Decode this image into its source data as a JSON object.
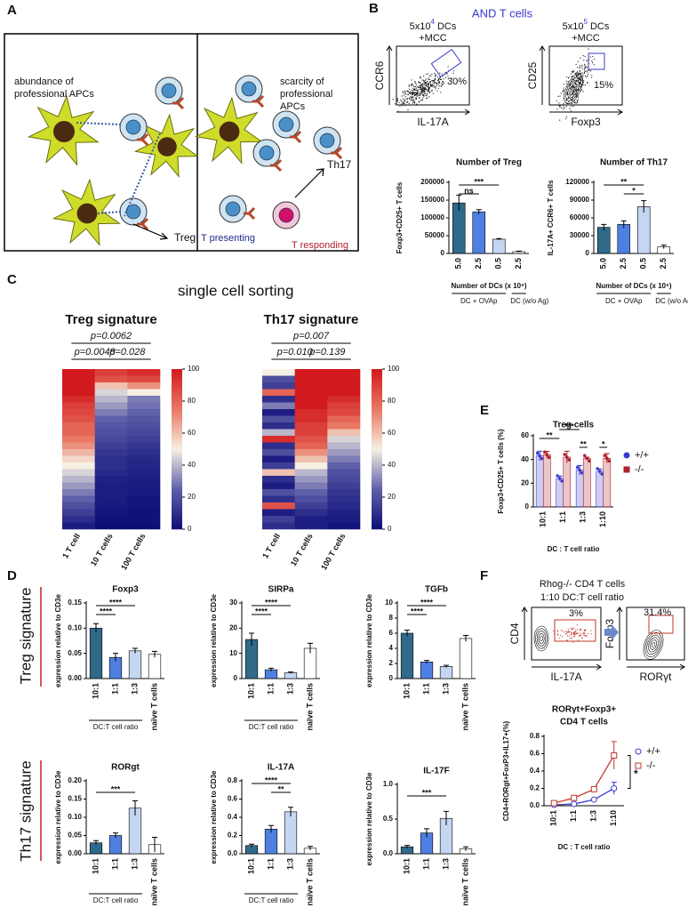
{
  "panel_labels": [
    "A",
    "B",
    "C",
    "D",
    "E",
    "F"
  ],
  "schematic": {
    "left_text": [
      "abundance of",
      "professional APCs"
    ],
    "left_outcome": "Treg",
    "right_text": [
      "scarcity of",
      "professional",
      "APCs"
    ],
    "right_outcome": "Th17",
    "presenting": "T presenting",
    "responding": "T responding"
  },
  "flow_B": {
    "title": "AND T cells",
    "plots": [
      {
        "dc_number": "5x10",
        "dc_exponent": "4",
        "dc_unit": " DCs",
        "stim": "+MCC",
        "y_label": "CCR6",
        "x_label": "IL-17A",
        "gate": "30%"
      },
      {
        "dc_number": "5x10",
        "dc_exponent": "5",
        "dc_unit": " DCs",
        "stim": "+MCC",
        "y_label": "CD25",
        "x_label": "Foxp3",
        "gate": "15%"
      }
    ]
  },
  "panel_C_title": "single cell sorting",
  "flow_F": {
    "title": [
      "Rhog-/- CD4 T cells",
      "1:10 DC:T cell ratio"
    ],
    "plots": [
      {
        "y_label": "CD4",
        "x_label": "IL-17A",
        "gate": "3%"
      },
      {
        "y_label": "Foxp3",
        "x_label": "RORγt",
        "gate": "31.4%"
      }
    ]
  },
  "side_labels": [
    "Treg signature",
    "Th17 signature"
  ],
  "chart_data": [
    {
      "type": "bar",
      "title": "Number of Treg",
      "y_label": "Foxp3+CD25+ T cells",
      "x_label": "Number of DCs (x 10⁵)",
      "categories": [
        "5.0",
        "2.5",
        "0.5",
        "2.5"
      ],
      "values": [
        142000,
        117000,
        40000,
        5000
      ],
      "errors": [
        22000,
        6000,
        2000,
        1500
      ],
      "colors": [
        "#2f6a8a",
        "#4f7fe0",
        "#c5d6f2",
        "#ffffff"
      ],
      "ylim": [
        0,
        200000
      ],
      "yticks": [
        0,
        50000,
        100000,
        150000,
        200000
      ],
      "groups": [
        "DC + OVAp",
        "DC (w/o Ag)"
      ],
      "significance": [
        "ns",
        "***"
      ]
    },
    {
      "type": "bar",
      "title": "Number of Th17",
      "y_label": "IL-17A+ CCR6+ T cells",
      "x_label": "Number of DCs (x 10⁵)",
      "categories": [
        "5.0",
        "2.5",
        "0.5",
        "2.5"
      ],
      "values": [
        44000,
        49000,
        79000,
        11000
      ],
      "errors": [
        5000,
        6000,
        10000,
        3000
      ],
      "colors": [
        "#2f6a8a",
        "#4f7fe0",
        "#c5d6f2",
        "#ffffff"
      ],
      "ylim": [
        0,
        120000
      ],
      "yticks": [
        0,
        30000,
        60000,
        90000,
        120000
      ],
      "groups": [
        "DC + OVAp",
        "DC (w/o Ag)"
      ],
      "significance": [
        "**",
        "*"
      ]
    },
    {
      "type": "heatmap",
      "title": "Treg signature",
      "columns": [
        "1 T cell",
        "10 T cells",
        "100 T cells"
      ],
      "pvalues": [
        "p=0.0062",
        "p=0.0048",
        "p=0.028"
      ],
      "clim": [
        0,
        100
      ],
      "cticks": [
        0,
        20,
        40,
        60,
        80,
        100
      ],
      "values": [
        [
          100,
          90,
          95
        ],
        [
          100,
          85,
          88
        ],
        [
          100,
          60,
          70
        ],
        [
          100,
          45,
          50
        ],
        [
          95,
          40,
          30
        ],
        [
          90,
          35,
          28
        ],
        [
          88,
          30,
          25
        ],
        [
          85,
          25,
          22
        ],
        [
          80,
          22,
          20
        ],
        [
          80,
          20,
          18
        ],
        [
          75,
          18,
          15
        ],
        [
          70,
          15,
          12
        ],
        [
          62,
          12,
          10
        ],
        [
          55,
          10,
          8
        ],
        [
          50,
          10,
          7
        ],
        [
          45,
          8,
          6
        ],
        [
          40,
          6,
          5
        ],
        [
          35,
          5,
          4
        ],
        [
          30,
          5,
          3
        ],
        [
          25,
          4,
          2
        ],
        [
          20,
          3,
          2
        ],
        [
          15,
          2,
          1
        ],
        [
          10,
          1,
          1
        ],
        [
          5,
          0,
          0
        ]
      ]
    },
    {
      "type": "heatmap",
      "title": "Th17 signature",
      "columns": [
        "1 T cell",
        "10 T cells",
        "100 T cells"
      ],
      "pvalues": [
        "p=0.007",
        "p=0.010",
        "p=0.139"
      ],
      "clim": [
        0,
        100
      ],
      "cticks": [
        0,
        20,
        40,
        60,
        80,
        100
      ],
      "values": [
        [
          50,
          100,
          100
        ],
        [
          20,
          100,
          100
        ],
        [
          15,
          100,
          100
        ],
        [
          80,
          100,
          100
        ],
        [
          10,
          100,
          95
        ],
        [
          30,
          100,
          90
        ],
        [
          5,
          95,
          88
        ],
        [
          20,
          95,
          80
        ],
        [
          10,
          90,
          75
        ],
        [
          40,
          90,
          60
        ],
        [
          95,
          85,
          45
        ],
        [
          10,
          80,
          40
        ],
        [
          20,
          70,
          35
        ],
        [
          5,
          60,
          30
        ],
        [
          15,
          50,
          25
        ],
        [
          60,
          40,
          20
        ],
        [
          10,
          35,
          18
        ],
        [
          5,
          30,
          15
        ],
        [
          20,
          25,
          12
        ],
        [
          10,
          20,
          10
        ],
        [
          85,
          15,
          8
        ],
        [
          5,
          10,
          6
        ],
        [
          15,
          5,
          4
        ],
        [
          10,
          5,
          2
        ]
      ]
    },
    {
      "type": "bar",
      "title": "Treg cells",
      "y_label": "Foxp3+CD25+ T cells (%)",
      "x_label": "DC : T cell ratio",
      "categories": [
        "10:1",
        "1:1",
        "1:3",
        "1:10"
      ],
      "ylim": [
        0,
        60
      ],
      "yticks": [
        0,
        20,
        40,
        60
      ],
      "series": [
        {
          "name": "+/+",
          "color": "#3a3ad0",
          "values": [
            43,
            24,
            31,
            30
          ],
          "errors": [
            4,
            2,
            4,
            2
          ]
        },
        {
          "name": "-/-",
          "color": "#b0202a",
          "values": [
            44,
            42,
            41,
            41
          ],
          "errors": [
            3,
            5,
            1,
            4
          ]
        }
      ],
      "significance": [
        "**",
        "***",
        "**",
        "*"
      ]
    },
    {
      "type": "bar",
      "title": "Foxp3",
      "y_label": "expression relative to CD3e",
      "x_label": "DC:T cell ratio",
      "categories": [
        "10:1",
        "1:1",
        "1:3",
        "naïve T cells"
      ],
      "values": [
        0.1,
        0.042,
        0.055,
        0.048
      ],
      "errors": [
        0.009,
        0.008,
        0.005,
        0.006
      ],
      "colors": [
        "#2f6a8a",
        "#4f7fe0",
        "#c5d6f2",
        "#ffffff"
      ],
      "ylim": [
        0,
        0.15
      ],
      "yticks": [
        {
          "value": 0,
          "label": "0.00"
        },
        0.05,
        {
          "value": 0.1,
          "label": "0.10"
        },
        0.15
      ],
      "significance": [
        "****",
        "****"
      ]
    },
    {
      "type": "bar",
      "title": "SIRPa",
      "y_label": "expression relative to CD3e",
      "x_label": "DC:T cell ratio",
      "categories": [
        "10:1",
        "1:1",
        "1:3",
        "naïve T cells"
      ],
      "values": [
        15.5,
        3.5,
        2.3,
        12
      ],
      "errors": [
        2.5,
        0.6,
        0.3,
        2
      ],
      "colors": [
        "#2f6a8a",
        "#4f7fe0",
        "#c5d6f2",
        "#ffffff"
      ],
      "ylim": [
        0,
        30
      ],
      "yticks": [
        0,
        10,
        20,
        30
      ],
      "significance": [
        "****",
        "****"
      ]
    },
    {
      "type": "bar",
      "title": "TGFb",
      "y_label": "expression relative to CD3e",
      "categories": [
        "10:1",
        "1:1",
        "1:3",
        "naïve T cells"
      ],
      "values": [
        6.0,
        2.2,
        1.6,
        5.3
      ],
      "errors": [
        0.4,
        0.2,
        0.15,
        0.4
      ],
      "colors": [
        "#2f6a8a",
        "#4f7fe0",
        "#c5d6f2",
        "#ffffff"
      ],
      "ylim": [
        0,
        10
      ],
      "yticks": [
        0,
        2,
        4,
        6,
        8,
        10
      ],
      "significance": [
        "****",
        "****"
      ]
    },
    {
      "type": "bar",
      "title": "RORgt",
      "y_label": "expression relative to CD3e",
      "x_label": "DC:T cell ratio",
      "categories": [
        "10:1",
        "1:1",
        "1:3",
        "naïve T cells"
      ],
      "values": [
        0.03,
        0.05,
        0.125,
        0.025
      ],
      "errors": [
        0.006,
        0.007,
        0.02,
        0.02
      ],
      "colors": [
        "#2f6a8a",
        "#4f7fe0",
        "#c5d6f2",
        "#ffffff"
      ],
      "ylim": [
        0,
        0.2
      ],
      "yticks": [
        {
          "value": 0,
          "label": "0.00"
        },
        0.05,
        {
          "value": 0.1,
          "label": "0.10"
        },
        0.15,
        {
          "value": 0.2,
          "label": "0.20"
        }
      ],
      "significance": [
        "***"
      ]
    },
    {
      "type": "bar",
      "title": "IL-17A",
      "y_label": "expression relative to CD3e",
      "x_label": "DC:T cell ratio",
      "categories": [
        "10:1",
        "1:1",
        "1:3",
        "naïve T cells"
      ],
      "values": [
        0.09,
        0.27,
        0.46,
        0.06
      ],
      "errors": [
        0.015,
        0.04,
        0.05,
        0.02
      ],
      "colors": [
        "#2f6a8a",
        "#4f7fe0",
        "#c5d6f2",
        "#ffffff"
      ],
      "ylim": [
        0,
        0.8
      ],
      "yticks": [
        {
          "value": 0,
          "label": "0.0"
        },
        0.2,
        0.4,
        0.6,
        0.8
      ],
      "significance": [
        "****",
        "**"
      ]
    },
    {
      "type": "bar",
      "title": "IL-17F",
      "y_label": "expression relative to CD3e",
      "categories": [
        "10:1",
        "1:1",
        "1:3",
        "naïve T cells"
      ],
      "values": [
        0.1,
        0.3,
        0.51,
        0.07
      ],
      "errors": [
        0.02,
        0.06,
        0.1,
        0.03
      ],
      "colors": [
        "#2f6a8a",
        "#4f7fe0",
        "#c5d6f2",
        "#ffffff"
      ],
      "ylim": [
        0,
        1.0
      ],
      "yticks": [
        {
          "value": 0,
          "label": "0.0"
        },
        0.5,
        {
          "value": 1,
          "label": "1.0"
        }
      ],
      "significance": [
        "***"
      ]
    },
    {
      "type": "line",
      "title": [
        "RORγt+Foxp3+",
        "CD4 T cells"
      ],
      "y_label": "CD4+RORgt+FoxP3+IL17+(%)",
      "x_label": "DC : T cell ratio",
      "categories": [
        "10:1",
        "1:1",
        "1:3",
        "1:10"
      ],
      "ylim": [
        0,
        0.8
      ],
      "yticks": [
        {
          "value": 0,
          "label": "0.0"
        },
        0.2,
        0.4,
        0.6,
        0.8
      ],
      "series": [
        {
          "name": "+/+",
          "color": "#3a3ad0",
          "values": [
            0.01,
            0.02,
            0.07,
            0.2
          ],
          "errors": [
            0.003,
            0.005,
            0.01,
            0.07
          ]
        },
        {
          "name": "-/-",
          "color": "#c0392b",
          "values": [
            0.03,
            0.09,
            0.19,
            0.58
          ],
          "errors": [
            0.005,
            0.01,
            0.02,
            0.16
          ]
        }
      ],
      "significance": [
        "*"
      ]
    }
  ]
}
